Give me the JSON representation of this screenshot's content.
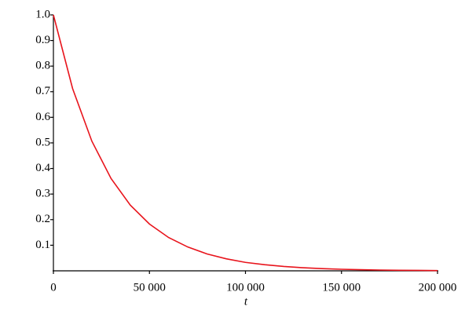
{
  "chart_data": {
    "type": "line",
    "x_label": "t",
    "x": [
      0,
      10000,
      20000,
      30000,
      40000,
      50000,
      60000,
      70000,
      80000,
      90000,
      100000,
      110000,
      120000,
      130000,
      140000,
      150000,
      160000,
      170000,
      180000,
      190000,
      200000
    ],
    "series": [
      {
        "color": "#e8141c",
        "values": [
          1.0,
          0.712,
          0.507,
          0.361,
          0.257,
          0.183,
          0.13,
          0.093,
          0.066,
          0.047,
          0.033,
          0.024,
          0.017,
          0.012,
          0.0086,
          0.0061,
          0.0043,
          0.0031,
          0.0022,
          0.0016,
          0.0011
        ]
      }
    ],
    "xlim": [
      0,
      200000
    ],
    "xticks": [
      0,
      {
        "value": 50000,
        "label": "50 000"
      },
      {
        "value": 100000,
        "label": "100 000"
      },
      {
        "value": 150000,
        "label": "150 000"
      },
      {
        "value": 200000,
        "label": "200 000"
      }
    ],
    "ylim": [
      0,
      1
    ],
    "yticks": [
      0.1,
      0.2,
      0.3,
      0.4,
      0.5,
      0.6,
      0.7,
      0.8,
      0.9,
      {
        "value": 1,
        "label": "1.0"
      }
    ]
  }
}
